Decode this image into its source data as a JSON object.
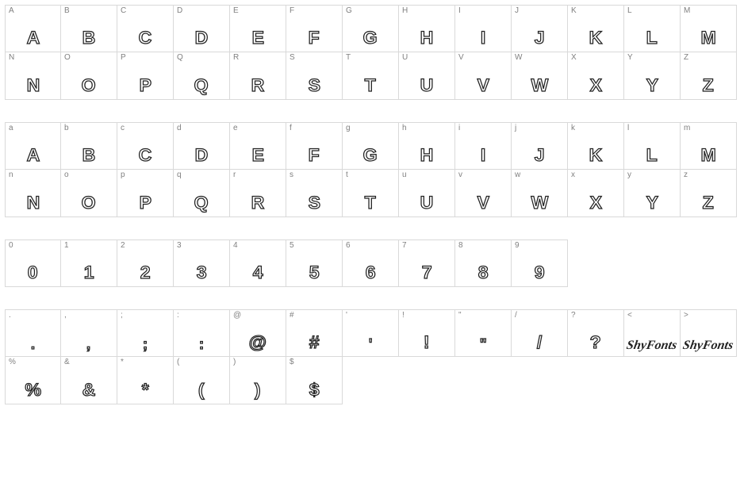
{
  "cell_width_13": 71,
  "cell_width_10": 71,
  "cell_border_color": "#d9d9d9",
  "label_color": "#808080",
  "glyph_stroke_color": "#222222",
  "glyph_fill_color": "#ffffff",
  "background_color": "#ffffff",
  "blocks": [
    {
      "cols": 13,
      "rows": [
        [
          {
            "label": "A",
            "glyph": "A"
          },
          {
            "label": "B",
            "glyph": "B"
          },
          {
            "label": "C",
            "glyph": "C"
          },
          {
            "label": "D",
            "glyph": "D"
          },
          {
            "label": "E",
            "glyph": "E"
          },
          {
            "label": "F",
            "glyph": "F"
          },
          {
            "label": "G",
            "glyph": "G"
          },
          {
            "label": "H",
            "glyph": "H"
          },
          {
            "label": "I",
            "glyph": "I"
          },
          {
            "label": "J",
            "glyph": "J"
          },
          {
            "label": "K",
            "glyph": "K"
          },
          {
            "label": "L",
            "glyph": "L"
          },
          {
            "label": "M",
            "glyph": "M"
          }
        ],
        [
          {
            "label": "N",
            "glyph": "N"
          },
          {
            "label": "O",
            "glyph": "O"
          },
          {
            "label": "P",
            "glyph": "P"
          },
          {
            "label": "Q",
            "glyph": "Q"
          },
          {
            "label": "R",
            "glyph": "R"
          },
          {
            "label": "S",
            "glyph": "S"
          },
          {
            "label": "T",
            "glyph": "T"
          },
          {
            "label": "U",
            "glyph": "U"
          },
          {
            "label": "V",
            "glyph": "V"
          },
          {
            "label": "W",
            "glyph": "W"
          },
          {
            "label": "X",
            "glyph": "X"
          },
          {
            "label": "Y",
            "glyph": "Y"
          },
          {
            "label": "Z",
            "glyph": "Z"
          }
        ]
      ]
    },
    {
      "cols": 13,
      "rows": [
        [
          {
            "label": "a",
            "glyph": "A"
          },
          {
            "label": "b",
            "glyph": "B"
          },
          {
            "label": "c",
            "glyph": "C"
          },
          {
            "label": "d",
            "glyph": "D"
          },
          {
            "label": "e",
            "glyph": "E"
          },
          {
            "label": "f",
            "glyph": "F"
          },
          {
            "label": "g",
            "glyph": "G"
          },
          {
            "label": "h",
            "glyph": "H"
          },
          {
            "label": "i",
            "glyph": "I"
          },
          {
            "label": "j",
            "glyph": "J"
          },
          {
            "label": "k",
            "glyph": "K"
          },
          {
            "label": "l",
            "glyph": "L"
          },
          {
            "label": "m",
            "glyph": "M"
          }
        ],
        [
          {
            "label": "n",
            "glyph": "N"
          },
          {
            "label": "o",
            "glyph": "O"
          },
          {
            "label": "p",
            "glyph": "P"
          },
          {
            "label": "q",
            "glyph": "Q"
          },
          {
            "label": "r",
            "glyph": "R"
          },
          {
            "label": "s",
            "glyph": "S"
          },
          {
            "label": "t",
            "glyph": "T"
          },
          {
            "label": "u",
            "glyph": "U"
          },
          {
            "label": "v",
            "glyph": "V"
          },
          {
            "label": "w",
            "glyph": "W"
          },
          {
            "label": "x",
            "glyph": "X"
          },
          {
            "label": "y",
            "glyph": "Y"
          },
          {
            "label": "z",
            "glyph": "Z"
          }
        ]
      ]
    },
    {
      "cols": 10,
      "rows": [
        [
          {
            "label": "0",
            "glyph": "0"
          },
          {
            "label": "1",
            "glyph": "1"
          },
          {
            "label": "2",
            "glyph": "2"
          },
          {
            "label": "3",
            "glyph": "3"
          },
          {
            "label": "4",
            "glyph": "4"
          },
          {
            "label": "5",
            "glyph": "5"
          },
          {
            "label": "6",
            "glyph": "6"
          },
          {
            "label": "7",
            "glyph": "7"
          },
          {
            "label": "8",
            "glyph": "8"
          },
          {
            "label": "9",
            "glyph": "9"
          }
        ]
      ]
    },
    {
      "cols": 13,
      "rows": [
        [
          {
            "label": ".",
            "glyph": ".",
            "small": true
          },
          {
            "label": ",",
            "glyph": ",",
            "small": true
          },
          {
            "label": ";",
            "glyph": ";",
            "small": true
          },
          {
            "label": ":",
            "glyph": ":",
            "small": true
          },
          {
            "label": "@",
            "glyph": "@"
          },
          {
            "label": "#",
            "glyph": "#"
          },
          {
            "label": "'",
            "glyph": "'",
            "small": true
          },
          {
            "label": "!",
            "glyph": "!"
          },
          {
            "label": "\"",
            "glyph": "\"",
            "small": true
          },
          {
            "label": "/",
            "glyph": "/"
          },
          {
            "label": "?",
            "glyph": "?"
          },
          {
            "label": "<",
            "glyph": "ShyFonts",
            "script": true
          },
          {
            "label": ">",
            "glyph": "ShyFonts",
            "script": true
          }
        ],
        [
          {
            "label": "%",
            "glyph": "%"
          },
          {
            "label": "&",
            "glyph": "&"
          },
          {
            "label": "*",
            "glyph": "*"
          },
          {
            "label": "(",
            "glyph": "("
          },
          {
            "label": ")",
            "glyph": ")"
          },
          {
            "label": "$",
            "glyph": "$"
          }
        ]
      ]
    }
  ]
}
